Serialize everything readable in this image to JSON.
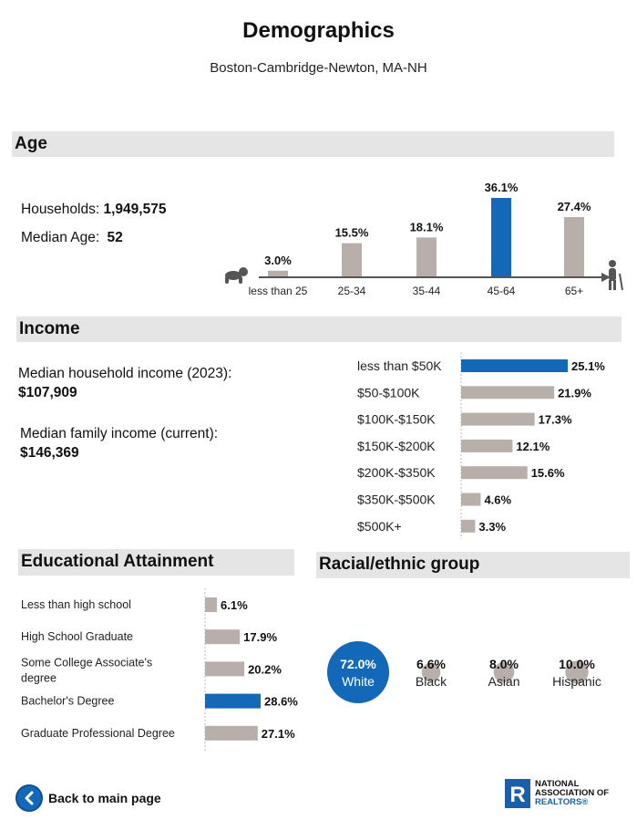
{
  "page": {
    "title": "Demographics",
    "subtitle": "Boston-Cambridge-Newton, MA-NH"
  },
  "age": {
    "heading": "Age",
    "households_label": "Households:",
    "households_value": "1,949,575",
    "median_age_label": "Median Age:",
    "median_age_value": "52"
  },
  "income": {
    "heading": "Income",
    "median_household_label": "Median household income (2023):",
    "median_household_value": "$107,909",
    "median_family_label": "Median family income (current):",
    "median_family_value": "$146,369"
  },
  "education": {
    "heading": "Educational Attainment"
  },
  "race": {
    "heading": "Racial/ethnic group"
  },
  "footer": {
    "back_label": "Back to main page",
    "logo_line1": "NATIONAL",
    "logo_line2": "ASSOCIATION OF",
    "logo_line3": "REALTORS®"
  },
  "colors": {
    "highlight": "#1468b8",
    "bar": "#b8aeaa",
    "section_bg": "#e6e5e5"
  },
  "chart_data": [
    {
      "type": "bar",
      "name": "age",
      "categories": [
        "less than 25",
        "25-34",
        "35-44",
        "45-64",
        "65+"
      ],
      "values": [
        3.0,
        15.5,
        18.1,
        36.1,
        27.4
      ],
      "labels": [
        "3.0%",
        "15.5%",
        "18.1%",
        "36.1%",
        "27.4%"
      ],
      "highlight_index": 3
    },
    {
      "type": "bar",
      "orientation": "horizontal",
      "name": "income",
      "categories": [
        "less than $50K",
        "$50-$100K",
        "$100K-$150K",
        "$150K-$200K",
        "$200K-$350K",
        "$350K-$500K",
        "$500K+"
      ],
      "values": [
        25.1,
        21.9,
        17.3,
        12.1,
        15.6,
        4.6,
        3.3
      ],
      "labels": [
        "25.1%",
        "21.9%",
        "17.3%",
        "12.1%",
        "15.6%",
        "4.6%",
        "3.3%"
      ],
      "highlight_index": 0
    },
    {
      "type": "bar",
      "orientation": "horizontal",
      "name": "education",
      "categories": [
        "Less than high school",
        "High School Graduate",
        "Some College Associate's degree",
        "Bachelor's Degree",
        "Graduate Professional Degree"
      ],
      "category_lines": [
        [
          "Less than high school"
        ],
        [
          "High School Graduate"
        ],
        [
          "Some College Associate's",
          "degree"
        ],
        [
          "Bachelor's Degree"
        ],
        [
          "Graduate Professional Degree"
        ]
      ],
      "values": [
        6.1,
        17.9,
        20.2,
        28.6,
        27.1
      ],
      "labels": [
        "6.1%",
        "17.9%",
        "20.2%",
        "28.6%",
        "27.1%"
      ],
      "highlight_index": 3
    },
    {
      "type": "bubble",
      "name": "race",
      "categories": [
        "White",
        "Black",
        "Asian",
        "Hispanic"
      ],
      "values": [
        72.0,
        6.6,
        8.0,
        10.0
      ],
      "labels": [
        "72.0%",
        "6.6%",
        "8.0%",
        "10.0%"
      ],
      "highlight_index": 0
    }
  ]
}
